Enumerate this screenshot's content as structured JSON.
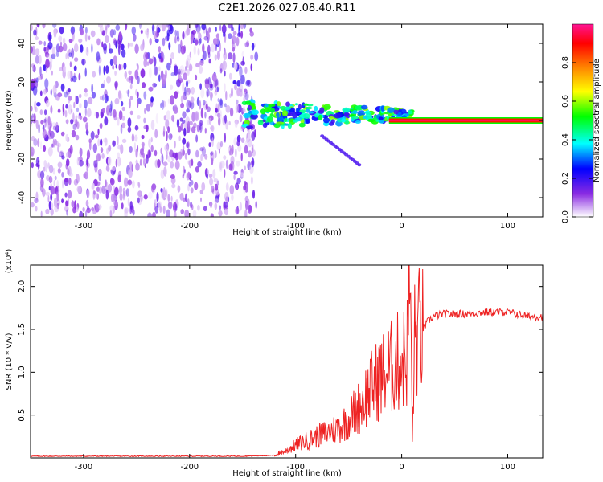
{
  "title": "C2E1.2026.027.08.40.R11",
  "chart_data": [
    {
      "type": "heatmap",
      "title": "C2E1.2026.027.08.40.R11",
      "xlabel": "Height of straight line (km)",
      "ylabel": "Frequency (Hz)",
      "xlim": [
        -350,
        133
      ],
      "ylim": [
        -50,
        50
      ],
      "x_ticks": [
        -300,
        -200,
        -100,
        0,
        100
      ],
      "y_ticks": [
        -40,
        -20,
        0,
        20,
        40
      ],
      "colorbar": {
        "label": "Normalized spectral amplitude",
        "range": [
          0,
          1
        ],
        "ticks": [
          "0.0",
          "0.2",
          "0.4",
          "0.6",
          "0.8"
        ],
        "colors": [
          "#ffffff",
          "#8a2be2",
          "#0000ff",
          "#00ffff",
          "#00ff00",
          "#ffff00",
          "#ff7f00",
          "#ff0000",
          "#ff1493"
        ]
      },
      "features": {
        "noise_region_x": [
          -350,
          -137
        ],
        "noise_amplitude": 0.15,
        "echo_band": {
          "x": [
            -150,
            10
          ],
          "frequency_hz": 3,
          "amplitude": 0.4
        },
        "strong_line": {
          "x": [
            0,
            133
          ],
          "frequency_hz": 0,
          "amplitude": 1.0
        },
        "descending_trace": {
          "x": [
            -75,
            -40
          ],
          "frequency_hz": [
            -8,
            -23
          ]
        }
      }
    },
    {
      "type": "line",
      "xlabel": "Height of straight line (km)",
      "ylabel": "SNR (10 * v/v)",
      "y_multiplier": "(x10⁴)",
      "xlim": [
        -350,
        133
      ],
      "ylim": [
        0,
        2.25
      ],
      "x_ticks": [
        -300,
        -200,
        -100,
        0,
        100
      ],
      "y_ticks": [
        0.5,
        1.0,
        1.5,
        2.0
      ],
      "y_tick_labels": [
        "0.5",
        "1.0",
        "1.5",
        "2.0"
      ],
      "color": "#ee2222",
      "series": [
        {
          "x": [
            -350,
            -300,
            -250,
            -200,
            -150,
            -120,
            -110,
            -100,
            -90,
            -80,
            -70,
            -60,
            -50,
            -40,
            -30,
            -20,
            -10,
            0,
            5,
            8,
            10,
            12,
            15,
            20,
            25,
            30,
            40,
            50,
            60,
            80,
            100,
            120,
            133
          ],
          "y": [
            0.02,
            0.02,
            0.02,
            0.02,
            0.02,
            0.03,
            0.08,
            0.15,
            0.2,
            0.25,
            0.3,
            0.35,
            0.45,
            0.6,
            0.8,
            0.95,
            1.05,
            1.15,
            1.2,
            2.25,
            0.15,
            1.35,
            1.45,
            1.5,
            1.6,
            1.65,
            1.68,
            1.68,
            1.68,
            1.7,
            1.7,
            1.65,
            1.65
          ]
        }
      ]
    }
  ]
}
